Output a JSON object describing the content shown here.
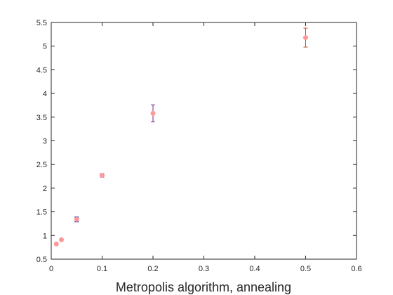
{
  "chart_data": {
    "type": "scatter",
    "xlabel": "Metropolis algorithm, annealing",
    "ylabel": "",
    "title": "",
    "xlim": [
      0,
      0.6
    ],
    "ylim": [
      0.5,
      5.5
    ],
    "grid": false,
    "legend": "none",
    "x_ticks": [
      "0",
      "0.1",
      "0.2",
      "0.3",
      "0.4",
      "0.5",
      "0.6"
    ],
    "y_ticks": [
      "0.5",
      "1",
      "1.5",
      "2",
      "2.5",
      "3",
      "3.5",
      "4",
      "4.5",
      "5",
      "5.5"
    ],
    "marker_color": "#ff9999",
    "points": [
      {
        "x": 0.01,
        "y": 0.82,
        "err": 0.01,
        "err_color": "#b03060"
      },
      {
        "x": 0.02,
        "y": 0.91,
        "err": 0.01,
        "err_color": "#b03060"
      },
      {
        "x": 0.05,
        "y": 1.34,
        "err": 0.05,
        "err_color": "#1c1c8c"
      },
      {
        "x": 0.1,
        "y": 2.27,
        "err": 0.04,
        "err_color": "#2a6db0"
      },
      {
        "x": 0.2,
        "y": 3.58,
        "err": 0.18,
        "err_color": "#7b2a8a"
      },
      {
        "x": 0.5,
        "y": 5.18,
        "err": 0.2,
        "err_color": "#c0501e"
      }
    ]
  }
}
